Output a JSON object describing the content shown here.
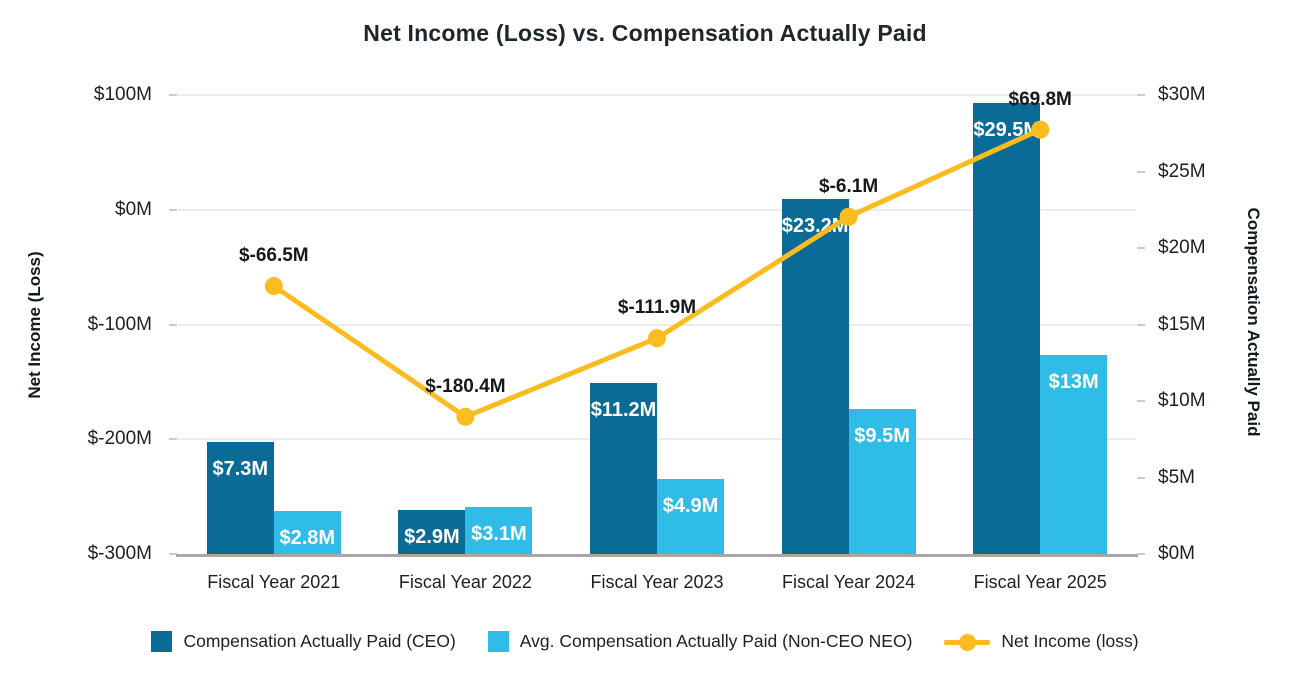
{
  "title": "Net Income (Loss) vs. Compensation Actually Paid",
  "chart_data": {
    "type": "combo (bar + line), dual y-axis",
    "categories": [
      "Fiscal Year 2021",
      "Fiscal Year 2022",
      "Fiscal Year 2023",
      "Fiscal Year 2024",
      "Fiscal Year 2025"
    ],
    "series": [
      {
        "name": "Compensation Actually Paid (CEO)",
        "type": "bar",
        "axis": "right",
        "color": "#0a6c96",
        "values": [
          7.3,
          2.9,
          11.2,
          23.2,
          29.5
        ],
        "labels": [
          "$7.3M",
          "$2.9M",
          "$11.2M",
          "$23.2M",
          "$29.5M"
        ]
      },
      {
        "name": "Avg. Compensation Actually Paid (Non-CEO NEO)",
        "type": "bar",
        "axis": "right",
        "color": "#2fbde7",
        "values": [
          2.8,
          3.1,
          4.9,
          9.5,
          13
        ],
        "labels": [
          "$2.8M",
          "$3.1M",
          "$4.9M",
          "$9.5M",
          "$13M"
        ]
      },
      {
        "name": "Net Income (loss)",
        "type": "line",
        "axis": "left",
        "color": "#fbbc20",
        "values": [
          -66.5,
          -180.4,
          -111.9,
          -6.1,
          69.8
        ],
        "labels": [
          "$-66.5M",
          "$-180.4M",
          "$-111.9M",
          "$-6.1M",
          "$69.8M"
        ]
      }
    ],
    "left_axis": {
      "label": "Net Income (Loss)",
      "tick_values": [
        100,
        0,
        -100,
        -200,
        -300
      ],
      "tick_labels": [
        "$100M",
        "$0M",
        "$-100M",
        "$-200M",
        "$-300M"
      ],
      "min": -300,
      "max": 100,
      "unit": "$M"
    },
    "right_axis": {
      "label": "Compensation Actually Paid",
      "tick_values": [
        30,
        25,
        20,
        15,
        10,
        5,
        0
      ],
      "tick_labels": [
        "$30M",
        "$25M",
        "$20M",
        "$15M",
        "$10M",
        "$5M",
        "$0M"
      ],
      "min": 0,
      "max": 30,
      "unit": "$M"
    },
    "grid": "horizontal gridlines at left-axis ticks",
    "legend_position": "bottom"
  },
  "colors": {
    "bar_ceo": "#0a6c96",
    "bar_neo": "#2fbde7",
    "line_net_income": "#fbbc20",
    "gridline": "#ececec",
    "axis_line": "#a8a8a8",
    "text": "#1a2025"
  }
}
